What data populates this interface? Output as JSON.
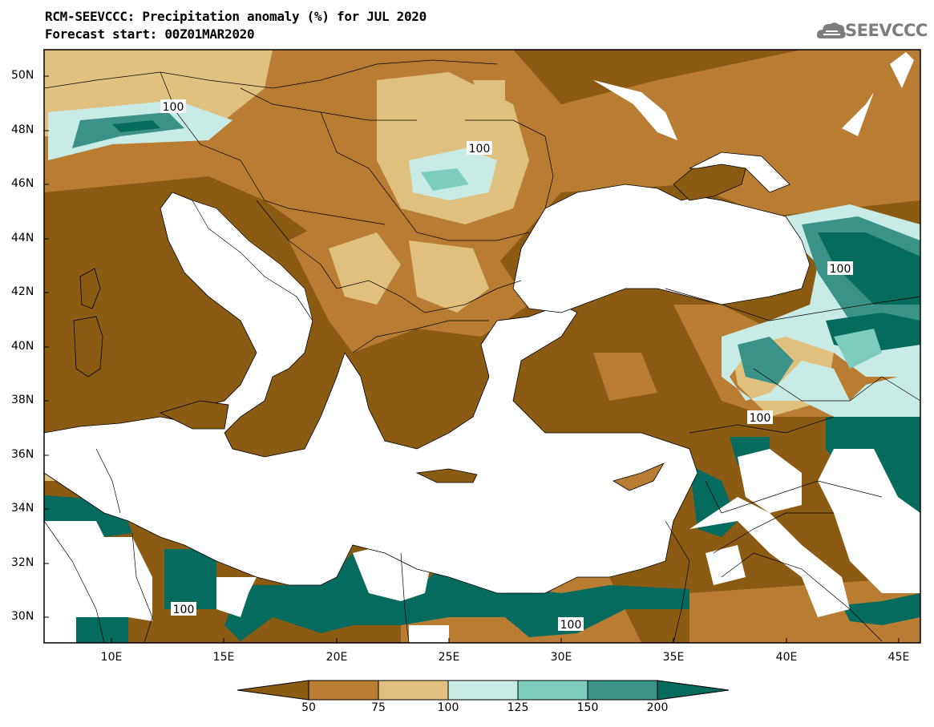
{
  "title_line1": "RCM-SEEVCCC: Precipitation anomaly (%) for JUL 2020",
  "title_line2": "Forecast start: 00Z01MAR2020",
  "logo": {
    "icon": "cloud-icon",
    "text": "SEEVCCC"
  },
  "map": {
    "lon_range": [
      7,
      46
    ],
    "lat_range": [
      29,
      51
    ],
    "lat_labels": [
      "50N",
      "48N",
      "46N",
      "44N",
      "42N",
      "40N",
      "38N",
      "36N",
      "34N",
      "32N",
      "30N"
    ],
    "lon_labels": [
      "10E",
      "15E",
      "20E",
      "25E",
      "30E",
      "35E",
      "40E",
      "45E"
    ],
    "contour_labels": [
      "100",
      "100",
      "100",
      "100",
      "100",
      "100"
    ]
  },
  "colorbar": {
    "levels": [
      "50",
      "75",
      "100",
      "125",
      "150",
      "200"
    ],
    "colors": [
      "#8b5a13",
      "#b87d32",
      "#dfc07f",
      "#c8ebe5",
      "#7ccdbc",
      "#3a9288",
      "#056b5f"
    ]
  }
}
